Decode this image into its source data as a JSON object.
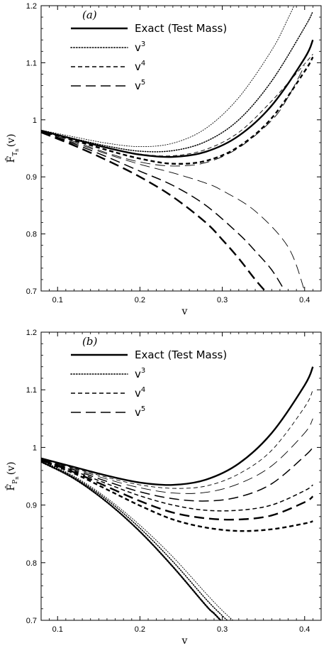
{
  "chart_data": [
    {
      "type": "line",
      "panel_label": "(a)",
      "xlabel": "v",
      "ylabel": "F̂_Tn(v)",
      "xlim": [
        0.08,
        0.42
      ],
      "ylim": [
        0.7,
        1.2
      ],
      "xticks": [
        0.1,
        0.2,
        0.3,
        0.4
      ],
      "yticks": [
        0.7,
        0.8,
        0.9,
        1.0,
        1.1,
        1.2
      ],
      "xtick_labels": [
        "0.1",
        "0.2",
        "0.3",
        "0.4"
      ],
      "ytick_labels": [
        "0.7",
        "0.8",
        "0.9",
        "1",
        "1.1",
        "1.2"
      ],
      "legend_placement": "top-left",
      "legend": [
        {
          "label": "Exact (Test Mass)",
          "style": "solid",
          "sup": ""
        },
        {
          "label": "v",
          "style": "dotted",
          "sup": "3"
        },
        {
          "label": "v",
          "style": "short-dash",
          "sup": "4"
        },
        {
          "label": "v",
          "style": "long-dash",
          "sup": "5"
        }
      ],
      "series": [
        {
          "name": "Exact (Test Mass)",
          "style": "solid",
          "weight": "heavy",
          "x": [
            0.08,
            0.12,
            0.16,
            0.2,
            0.24,
            0.28,
            0.32,
            0.36,
            0.4,
            0.41
          ],
          "y": [
            0.981,
            0.966,
            0.951,
            0.939,
            0.935,
            0.944,
            0.972,
            1.025,
            1.108,
            1.14
          ]
        },
        {
          "style": "dotted",
          "weight": "light",
          "x": [
            0.08,
            0.12,
            0.16,
            0.2,
            0.24,
            0.28,
            0.32,
            0.36,
            0.38,
            0.4
          ],
          "y": [
            0.982,
            0.97,
            0.959,
            0.953,
            0.959,
            0.985,
            1.039,
            1.122,
            1.178,
            1.24
          ]
        },
        {
          "style": "dotted",
          "weight": "medium",
          "x": [
            0.08,
            0.12,
            0.16,
            0.2,
            0.24,
            0.28,
            0.32,
            0.36,
            0.4,
            0.41
          ],
          "y": [
            0.981,
            0.967,
            0.954,
            0.945,
            0.946,
            0.962,
            1.0,
            1.068,
            1.162,
            1.19
          ]
        },
        {
          "style": "short-dash",
          "weight": "light",
          "x": [
            0.08,
            0.12,
            0.16,
            0.2,
            0.24,
            0.28,
            0.32,
            0.36,
            0.4,
            0.41
          ],
          "y": [
            0.981,
            0.966,
            0.951,
            0.94,
            0.937,
            0.948,
            0.978,
            1.033,
            1.098,
            1.115
          ]
        },
        {
          "style": "short-dash",
          "weight": "heavy",
          "x": [
            0.08,
            0.12,
            0.16,
            0.2,
            0.24,
            0.28,
            0.32,
            0.36,
            0.4,
            0.41
          ],
          "y": [
            0.98,
            0.964,
            0.947,
            0.932,
            0.923,
            0.928,
            0.953,
            1.003,
            1.085,
            1.11
          ]
        },
        {
          "style": "long-dash",
          "weight": "light",
          "x": [
            0.08,
            0.12,
            0.16,
            0.2,
            0.24,
            0.28,
            0.32,
            0.36,
            0.38,
            0.4
          ],
          "y": [
            0.98,
            0.962,
            0.942,
            0.926,
            0.919,
            0.925,
            0.951,
            0.999,
            1.04,
            1.095
          ]
        },
        {
          "style": "long-dash",
          "weight": "light",
          "x": [
            0.08,
            0.12,
            0.16,
            0.2,
            0.24,
            0.28,
            0.3,
            0.34,
            0.38,
            0.4
          ],
          "y": [
            0.979,
            0.96,
            0.94,
            0.922,
            0.907,
            0.889,
            0.876,
            0.84,
            0.777,
            0.7
          ]
        },
        {
          "style": "long-dash",
          "weight": "medium",
          "x": [
            0.08,
            0.12,
            0.16,
            0.2,
            0.24,
            0.28,
            0.32,
            0.34,
            0.36,
            0.376
          ],
          "y": [
            0.979,
            0.958,
            0.935,
            0.91,
            0.885,
            0.85,
            0.8,
            0.77,
            0.737,
            0.7
          ]
        },
        {
          "style": "long-dash",
          "weight": "heavy",
          "x": [
            0.08,
            0.12,
            0.16,
            0.2,
            0.24,
            0.28,
            0.3,
            0.32,
            0.34,
            0.352
          ],
          "y": [
            0.978,
            0.955,
            0.929,
            0.9,
            0.865,
            0.82,
            0.79,
            0.757,
            0.72,
            0.7
          ]
        }
      ]
    },
    {
      "type": "line",
      "panel_label": "(b)",
      "xlabel": "v",
      "ylabel": "F̂_Pn(v)",
      "xlim": [
        0.08,
        0.42
      ],
      "ylim": [
        0.7,
        1.2
      ],
      "xticks": [
        0.1,
        0.2,
        0.3,
        0.4
      ],
      "yticks": [
        0.7,
        0.8,
        0.9,
        1.0,
        1.1,
        1.2
      ],
      "xtick_labels": [
        "0.1",
        "0.2",
        "0.3",
        "0.4"
      ],
      "ytick_labels": [
        "0.7",
        "0.8",
        "0.9",
        "1",
        "1.1",
        "1.2"
      ],
      "legend_placement": "top-left",
      "legend": [
        {
          "label": "Exact (Test Mass)",
          "style": "solid",
          "sup": ""
        },
        {
          "label": "v",
          "style": "dotted",
          "sup": "3"
        },
        {
          "label": "v",
          "style": "short-dash",
          "sup": "4"
        },
        {
          "label": "v",
          "style": "long-dash",
          "sup": "5"
        }
      ],
      "series": [
        {
          "name": "Exact (Test Mass)",
          "style": "solid",
          "weight": "heavy",
          "x": [
            0.08,
            0.12,
            0.16,
            0.2,
            0.24,
            0.28,
            0.32,
            0.36,
            0.4,
            0.41
          ],
          "y": [
            0.981,
            0.966,
            0.951,
            0.939,
            0.935,
            0.944,
            0.972,
            1.025,
            1.108,
            1.14
          ]
        },
        {
          "style": "short-dash",
          "weight": "light",
          "x": [
            0.08,
            0.12,
            0.16,
            0.2,
            0.24,
            0.28,
            0.32,
            0.36,
            0.4,
            0.41
          ],
          "y": [
            0.98,
            0.964,
            0.948,
            0.935,
            0.929,
            0.933,
            0.954,
            0.995,
            1.07,
            1.1
          ]
        },
        {
          "style": "long-dash",
          "weight": "light",
          "x": [
            0.08,
            0.12,
            0.16,
            0.2,
            0.24,
            0.28,
            0.32,
            0.36,
            0.4,
            0.41
          ],
          "y": [
            0.98,
            0.963,
            0.945,
            0.93,
            0.921,
            0.922,
            0.937,
            0.968,
            1.025,
            1.05
          ]
        },
        {
          "style": "long-dash",
          "weight": "medium",
          "x": [
            0.08,
            0.12,
            0.16,
            0.2,
            0.24,
            0.28,
            0.32,
            0.36,
            0.4,
            0.41
          ],
          "y": [
            0.979,
            0.961,
            0.941,
            0.923,
            0.911,
            0.907,
            0.914,
            0.937,
            0.985,
            1.0
          ]
        },
        {
          "style": "short-dash",
          "weight": "medium",
          "x": [
            0.08,
            0.12,
            0.16,
            0.2,
            0.24,
            0.28,
            0.32,
            0.36,
            0.4,
            0.41
          ],
          "y": [
            0.979,
            0.959,
            0.937,
            0.916,
            0.9,
            0.891,
            0.891,
            0.9,
            0.925,
            0.935
          ]
        },
        {
          "style": "long-dash",
          "weight": "heavy",
          "x": [
            0.08,
            0.12,
            0.16,
            0.2,
            0.24,
            0.28,
            0.32,
            0.36,
            0.4,
            0.41
          ],
          "y": [
            0.978,
            0.957,
            0.932,
            0.907,
            0.887,
            0.877,
            0.875,
            0.882,
            0.905,
            0.915
          ]
        },
        {
          "style": "short-dash",
          "weight": "heavy",
          "x": [
            0.08,
            0.12,
            0.16,
            0.2,
            0.24,
            0.28,
            0.32,
            0.36,
            0.4,
            0.41
          ],
          "y": [
            0.977,
            0.955,
            0.927,
            0.899,
            0.875,
            0.861,
            0.855,
            0.858,
            0.868,
            0.872
          ]
        },
        {
          "style": "dotted",
          "weight": "light",
          "x": [
            0.08,
            0.12,
            0.16,
            0.2,
            0.24,
            0.28,
            0.3,
            0.313
          ],
          "y": [
            0.977,
            0.95,
            0.912,
            0.865,
            0.81,
            0.747,
            0.717,
            0.7
          ]
        },
        {
          "style": "dotted",
          "weight": "medium",
          "x": [
            0.08,
            0.12,
            0.16,
            0.2,
            0.24,
            0.28,
            0.3,
            0.306
          ],
          "y": [
            0.976,
            0.948,
            0.909,
            0.86,
            0.802,
            0.737,
            0.708,
            0.7
          ]
        },
        {
          "style": "dotted",
          "weight": "heavy",
          "x": [
            0.08,
            0.12,
            0.16,
            0.2,
            0.24,
            0.28,
            0.29,
            0.298
          ],
          "y": [
            0.975,
            0.946,
            0.905,
            0.854,
            0.793,
            0.726,
            0.712,
            0.7
          ]
        }
      ]
    }
  ]
}
